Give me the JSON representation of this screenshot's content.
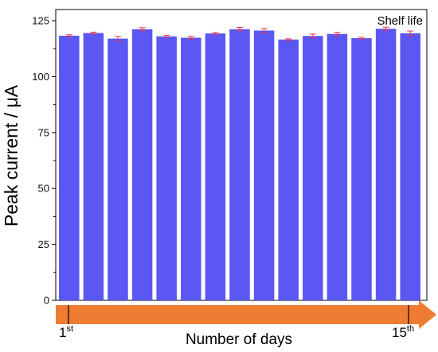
{
  "chart_data": {
    "type": "bar",
    "annotation": "Shelf life",
    "ylabel": "Peak current / μA",
    "xlabel": "Number of days",
    "ylim": [
      0,
      130
    ],
    "yticks": [
      0,
      25,
      50,
      75,
      100,
      125
    ],
    "grid": false,
    "bar_color": "#5b57f2",
    "error_color": "#e8334a",
    "arrow_color": "#ee7d33",
    "values": [
      118.3,
      119.5,
      117.0,
      121.2,
      118.0,
      117.4,
      119.3,
      121.2,
      120.6,
      116.6,
      118.2,
      119.1,
      117.2,
      121.4,
      119.4
    ],
    "errors": [
      0.4,
      0.4,
      1.0,
      0.7,
      0.5,
      0.6,
      0.4,
      0.8,
      0.9,
      0.3,
      0.8,
      0.7,
      0.4,
      0.7,
      1.0
    ],
    "x_start": {
      "number": "1",
      "suffix": "st"
    },
    "x_end": {
      "number": "15",
      "suffix": "th"
    }
  }
}
